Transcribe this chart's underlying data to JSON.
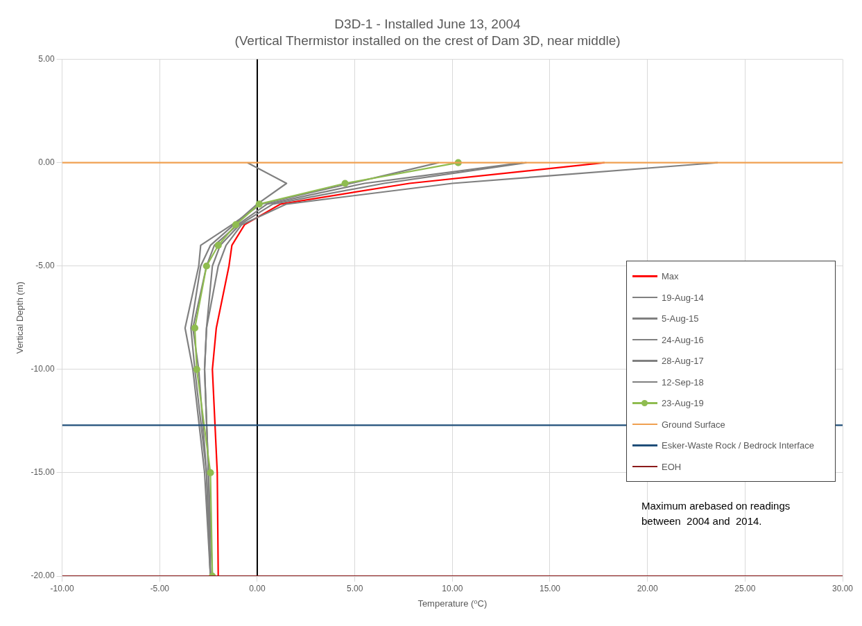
{
  "chart_data": {
    "type": "line",
    "title": "D3D-1 - Installed June 13, 2004",
    "subtitle": "(Vertical Thermistor installed on the crest of Dam 3D, near middle)",
    "xlabel": "Temperature (⁰C)",
    "ylabel": "Vertical Depth (m)",
    "xlim": [
      -10,
      30
    ],
    "ylim": [
      -20,
      5
    ],
    "xticks": [
      {
        "value": -10,
        "label": "-10.00"
      },
      {
        "value": -5,
        "label": "-5.00"
      },
      {
        "value": 0,
        "label": "0.00"
      },
      {
        "value": 5,
        "label": "5.00"
      },
      {
        "value": 10,
        "label": "10.00"
      },
      {
        "value": 15,
        "label": "15.00"
      },
      {
        "value": 20,
        "label": "20.00"
      },
      {
        "value": 25,
        "label": "25.00"
      },
      {
        "value": 30,
        "label": "30.00"
      }
    ],
    "yticks": [
      {
        "value": 5,
        "label": "5.00"
      },
      {
        "value": 0,
        "label": "0.00"
      },
      {
        "value": -5,
        "label": "-5.00"
      },
      {
        "value": -10,
        "label": "-10.00"
      },
      {
        "value": -15,
        "label": "-15.00"
      },
      {
        "value": -20,
        "label": "-20.00"
      }
    ],
    "grid": true,
    "legend": "right",
    "marker": "none",
    "series": [
      {
        "name": "Max",
        "color": "#ff0000",
        "x": [
          17.8,
          7.8,
          1.2,
          -0.65,
          -1.3,
          -1.45,
          -2.1,
          -2.3,
          -2.05,
          -2.0
        ],
        "values": [
          0,
          -1,
          -2,
          -3,
          -4,
          -5,
          -8,
          -10,
          -15,
          -20
        ]
      },
      {
        "name": "19-Aug-14",
        "color": "#808080",
        "x": [
          23.6,
          10.0,
          1.5,
          -0.8,
          -1.6,
          -2.0,
          -2.6,
          -2.7,
          -2.5,
          -2.3
        ],
        "values": [
          0,
          -1,
          -2,
          -3,
          -4,
          -5,
          -8,
          -10,
          -15,
          -20
        ]
      },
      {
        "name": "5-Aug-15",
        "color": "#808080",
        "x": [
          13.8,
          6.5,
          0.8,
          -0.9,
          -1.9,
          -2.3,
          -2.6,
          -2.7,
          -2.5,
          -2.4
        ],
        "values": [
          0,
          -1,
          -2,
          -3,
          -4,
          -5,
          -8,
          -10,
          -15,
          -20
        ]
      },
      {
        "name": "24-Aug-16",
        "color": "#808080",
        "x": [
          13.6,
          5.5,
          0.5,
          -1.0,
          -2.2,
          -2.6,
          -3.3,
          -3.0,
          -2.6,
          -2.4
        ],
        "values": [
          0,
          -1,
          -2,
          -3,
          -4,
          -5,
          -8,
          -10,
          -15,
          -20
        ]
      },
      {
        "name": "28-Aug-17",
        "color": "#808080",
        "x": [
          9.3,
          4.8,
          0.2,
          -1.3,
          -2.9,
          -3.0,
          -3.7,
          -3.3,
          -2.7,
          -2.4
        ],
        "values": [
          0,
          -1,
          -2,
          -3,
          -4,
          -5,
          -8,
          -10,
          -15,
          -20
        ]
      },
      {
        "name": "12-Sep-18",
        "color": "#808080",
        "x": [
          -0.5,
          1.5,
          0.0,
          -1.2,
          -2.4,
          -2.9,
          -3.4,
          -3.2,
          -2.6,
          -2.4
        ],
        "values": [
          0,
          -1,
          -2,
          -3,
          -4,
          -5,
          -8,
          -10,
          -15,
          -20
        ]
      },
      {
        "name": "23-Aug-19",
        "color": "#8fbc50",
        "marker": "circle",
        "x": [
          10.3,
          4.5,
          0.1,
          -1.1,
          -2.0,
          -2.6,
          -3.2,
          -3.1,
          -2.4,
          -2.3
        ],
        "values": [
          0,
          -1,
          -2,
          -3,
          -4,
          -5,
          -8,
          -10,
          -15,
          -20
        ]
      },
      {
        "name": "Ground Surface",
        "color": "#f0a050",
        "x": [
          -10,
          30
        ],
        "values": [
          0,
          0
        ]
      },
      {
        "name": "Esker-Waste Rock / Bedrock Interface",
        "color": "#1f4e79",
        "x": [
          -10,
          30
        ],
        "values": [
          -12.7,
          -12.7
        ]
      },
      {
        "name": "EOH",
        "color": "#8b1a1a",
        "x": [
          -10,
          30
        ],
        "values": [
          -20,
          -20
        ]
      }
    ],
    "ref_lines": [
      {
        "axis": "x",
        "value": 0,
        "color": "#000000"
      }
    ],
    "annotations": [
      "Maximum arebased on readings between  2004 and  2014."
    ]
  }
}
